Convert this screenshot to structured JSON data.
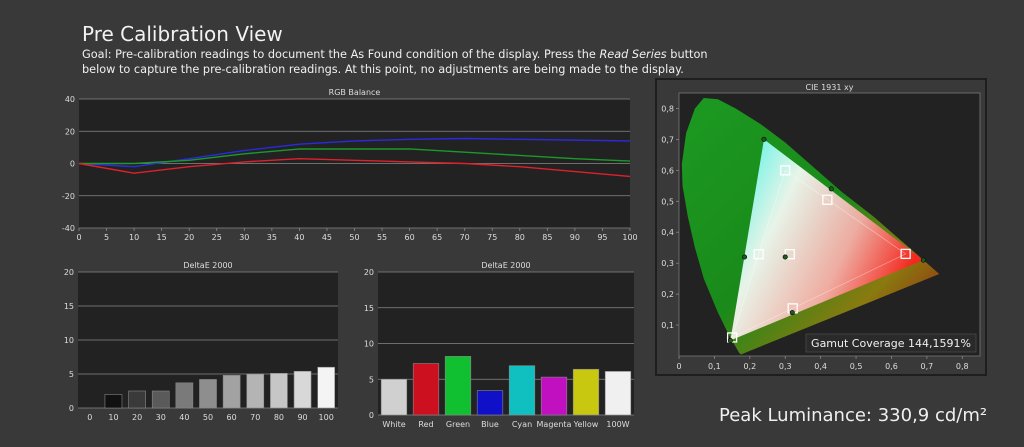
{
  "header": {
    "title": "Pre Calibration View",
    "goal_pre": "Goal: Pre-calibration readings to document the As Found condition of the display. Press the ",
    "goal_em": "Read Series",
    "goal_post": " button below to capture the pre-calibration readings. At this point, no adjustments are being made to the display."
  },
  "peak_luminance": "Peak Luminance: 330,9 cd/m²",
  "colors": {
    "panel_bg": "#222222",
    "grid": "#888888",
    "red": "#e0202c",
    "green": "#1a9a2a",
    "blue": "#2a2ae0"
  },
  "chart_data": [
    {
      "type": "line",
      "title": "RGB Balance",
      "x": [
        0,
        10,
        20,
        30,
        40,
        50,
        60,
        70,
        80,
        90,
        100
      ],
      "ylim": [
        -40,
        40
      ],
      "xlim": [
        0,
        100
      ],
      "yticks": [
        -40,
        -20,
        0,
        20,
        40
      ],
      "xticks": [
        0,
        5,
        10,
        15,
        20,
        25,
        30,
        35,
        40,
        45,
        50,
        55,
        60,
        65,
        70,
        75,
        80,
        85,
        90,
        95,
        100
      ],
      "grid": true,
      "series": [
        {
          "color": "#2a2ae0",
          "values": [
            0,
            -2,
            3,
            8,
            12,
            14,
            15,
            15.5,
            15,
            14.5,
            14
          ]
        },
        {
          "color": "#1a9a2a",
          "values": [
            0,
            0,
            2,
            6,
            9,
            9,
            9,
            7,
            5,
            3,
            1.5
          ]
        },
        {
          "color": "#e0202c",
          "values": [
            0,
            -6,
            -2,
            1,
            3,
            2,
            1,
            0,
            -2,
            -5,
            -8
          ]
        }
      ]
    },
    {
      "type": "bar",
      "title": "DeltaE 2000",
      "categories": [
        "0",
        "10",
        "20",
        "30",
        "40",
        "50",
        "60",
        "70",
        "80",
        "90",
        "100"
      ],
      "values": [
        0,
        2,
        2.5,
        2.5,
        3.7,
        4.2,
        4.8,
        5,
        5.1,
        5.4,
        6
      ],
      "colors": [
        "#000000",
        "#111111",
        "#3a3a3a",
        "#5a5a5a",
        "#7a7a7a",
        "#8e8e8e",
        "#a2a2a2",
        "#b4b4b4",
        "#c6c6c6",
        "#d8d8d8",
        "#f4f4f4"
      ],
      "ylim": [
        0,
        20
      ],
      "yticks": [
        0,
        5,
        10,
        15,
        20
      ]
    },
    {
      "type": "bar",
      "title": "DeltaE 2000",
      "categories": [
        "White",
        "Red",
        "Green",
        "Blue",
        "Cyan",
        "Magenta",
        "Yellow",
        "100W"
      ],
      "values": [
        5,
        7.2,
        8.2,
        3.4,
        6.9,
        5.3,
        6.4,
        6.1
      ],
      "colors": [
        "#d0d0d0",
        "#cc1020",
        "#10c030",
        "#1010c8",
        "#10c0c0",
        "#c010c0",
        "#c8c810",
        "#f0f0f0"
      ],
      "ylim": [
        0,
        20
      ],
      "yticks": [
        0,
        5,
        10,
        15,
        20
      ]
    },
    {
      "type": "scatter",
      "title": "CIE 1931 xy",
      "xlim": [
        0,
        0.85
      ],
      "ylim": [
        0,
        0.85
      ],
      "xticks": [
        "0",
        "0,1",
        "0,2",
        "0,3",
        "0,4",
        "0,5",
        "0,6",
        "0,7",
        "0,8"
      ],
      "yticks": [
        "0,1",
        "0,2",
        "0,3",
        "0,4",
        "0,5",
        "0,6",
        "0,7",
        "0,8"
      ],
      "targets": [
        {
          "x": 0.64,
          "y": 0.33
        },
        {
          "x": 0.3,
          "y": 0.6
        },
        {
          "x": 0.15,
          "y": 0.06
        },
        {
          "x": 0.225,
          "y": 0.329
        },
        {
          "x": 0.321,
          "y": 0.154
        },
        {
          "x": 0.419,
          "y": 0.505
        },
        {
          "x": 0.3127,
          "y": 0.329
        }
      ],
      "measured": [
        {
          "x": 0.69,
          "y": 0.31
        },
        {
          "x": 0.24,
          "y": 0.7
        },
        {
          "x": 0.145,
          "y": 0.05
        },
        {
          "x": 0.185,
          "y": 0.32
        },
        {
          "x": 0.32,
          "y": 0.14
        },
        {
          "x": 0.43,
          "y": 0.54
        },
        {
          "x": 0.3,
          "y": 0.32
        }
      ],
      "gamut_label": "Gamut Coverage 144,1591%"
    }
  ]
}
